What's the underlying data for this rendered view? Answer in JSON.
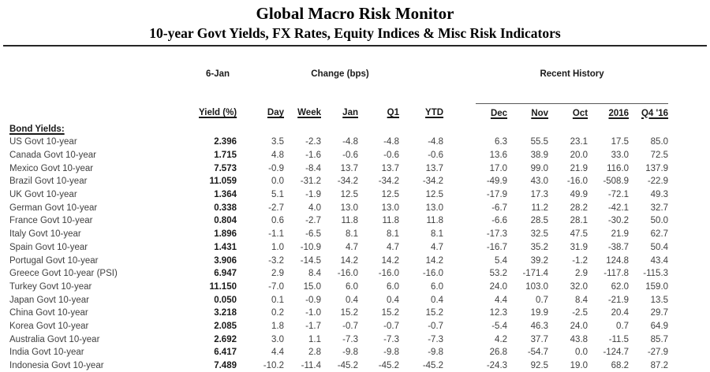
{
  "title": "Global Macro Risk Monitor",
  "subtitle": "10-year Govt Yields, FX Rates, Equity Indices & Misc Risk Indicators",
  "colors": {
    "heading_text": "#000000",
    "body_text": "#3f3f3f",
    "rule": "#262626"
  },
  "table": {
    "group_headers": {
      "date": "6-Jan",
      "change": "Change (bps)",
      "recent": "Recent History"
    },
    "columns": [
      "Yield (%)",
      "Day",
      "Week",
      "Jan",
      "Q1",
      "YTD",
      "Dec",
      "Nov",
      "Oct",
      "2016",
      "Q4 '16"
    ],
    "section_label": "Bond Yields:",
    "rows": [
      {
        "label": "US Govt 10-year",
        "values": [
          "2.396",
          "3.5",
          "-2.3",
          "-4.8",
          "-4.8",
          "-4.8",
          "6.3",
          "55.5",
          "23.1",
          "17.5",
          "85.0"
        ]
      },
      {
        "label": "Canada Govt 10-year",
        "values": [
          "1.715",
          "4.8",
          "-1.6",
          "-0.6",
          "-0.6",
          "-0.6",
          "13.6",
          "38.9",
          "20.0",
          "33.0",
          "72.5"
        ]
      },
      {
        "label": "Mexico Govt 10-year",
        "values": [
          "7.573",
          "-0.9",
          "-8.4",
          "13.7",
          "13.7",
          "13.7",
          "17.0",
          "99.0",
          "21.9",
          "116.0",
          "137.9"
        ]
      },
      {
        "label": "Brazil Govt 10-year",
        "values": [
          "11.059",
          "0.0",
          "-31.2",
          "-34.2",
          "-34.2",
          "-34.2",
          "-49.9",
          "43.0",
          "-16.0",
          "-508.9",
          "-22.9"
        ]
      },
      {
        "label": "UK Govt 10-year",
        "values": [
          "1.364",
          "5.1",
          "-1.9",
          "12.5",
          "12.5",
          "12.5",
          "-17.9",
          "17.3",
          "49.9",
          "-72.1",
          "49.3"
        ]
      },
      {
        "label": "German Govt 10-year",
        "values": [
          "0.338",
          "-2.7",
          "4.0",
          "13.0",
          "13.0",
          "13.0",
          "-6.7",
          "11.2",
          "28.2",
          "-42.1",
          "32.7"
        ]
      },
      {
        "label": "France Govt 10-year",
        "values": [
          "0.804",
          "0.6",
          "-2.7",
          "11.8",
          "11.8",
          "11.8",
          "-6.6",
          "28.5",
          "28.1",
          "-30.2",
          "50.0"
        ]
      },
      {
        "label": "Italy Govt 10-year",
        "values": [
          "1.896",
          "-1.1",
          "-6.5",
          "8.1",
          "8.1",
          "8.1",
          "-17.3",
          "32.5",
          "47.5",
          "21.9",
          "62.7"
        ]
      },
      {
        "label": "Spain Govt 10-year",
        "values": [
          "1.431",
          "1.0",
          "-10.9",
          "4.7",
          "4.7",
          "4.7",
          "-16.7",
          "35.2",
          "31.9",
          "-38.7",
          "50.4"
        ]
      },
      {
        "label": "Portugal Govt 10-year",
        "values": [
          "3.906",
          "-3.2",
          "-14.5",
          "14.2",
          "14.2",
          "14.2",
          "5.4",
          "39.2",
          "-1.2",
          "124.8",
          "43.4"
        ]
      },
      {
        "label": "Greece Govt 10-year (PSI)",
        "values": [
          "6.947",
          "2.9",
          "8.4",
          "-16.0",
          "-16.0",
          "-16.0",
          "53.2",
          "-171.4",
          "2.9",
          "-117.8",
          "-115.3"
        ]
      },
      {
        "label": "Turkey Govt 10-year",
        "values": [
          "11.150",
          "-7.0",
          "15.0",
          "6.0",
          "6.0",
          "6.0",
          "24.0",
          "103.0",
          "32.0",
          "62.0",
          "159.0"
        ]
      },
      {
        "label": "Japan Govt 10-year",
        "values": [
          "0.050",
          "0.1",
          "-0.9",
          "0.4",
          "0.4",
          "0.4",
          "4.4",
          "0.7",
          "8.4",
          "-21.9",
          "13.5"
        ]
      },
      {
        "label": "China Govt 10-year",
        "values": [
          "3.218",
          "0.2",
          "-1.0",
          "15.2",
          "15.2",
          "15.2",
          "12.3",
          "19.9",
          "-2.5",
          "20.4",
          "29.7"
        ]
      },
      {
        "label": "Korea Govt 10-year",
        "values": [
          "2.085",
          "1.8",
          "-1.7",
          "-0.7",
          "-0.7",
          "-0.7",
          "-5.4",
          "46.3",
          "24.0",
          "0.7",
          "64.9"
        ]
      },
      {
        "label": "Australia Govt 10-year",
        "values": [
          "2.692",
          "3.0",
          "1.1",
          "-7.3",
          "-7.3",
          "-7.3",
          "4.2",
          "37.7",
          "43.8",
          "-11.5",
          "85.7"
        ]
      },
      {
        "label": "India Govt 10-year",
        "values": [
          "6.417",
          "4.4",
          "2.8",
          "-9.8",
          "-9.8",
          "-9.8",
          "26.8",
          "-54.7",
          "0.0",
          "-124.7",
          "-27.9"
        ]
      },
      {
        "label": "Indonesia Govt 10-year",
        "values": [
          "7.489",
          "-10.2",
          "-11.4",
          "-45.2",
          "-45.2",
          "-45.2",
          "-24.3",
          "92.5",
          "19.0",
          "68.2",
          "87.2"
        ]
      }
    ]
  }
}
